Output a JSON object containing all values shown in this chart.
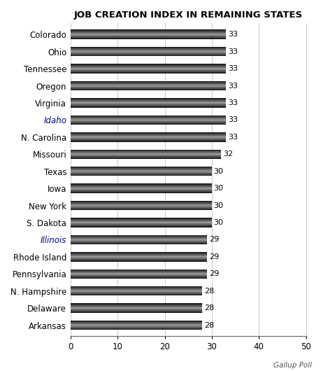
{
  "title": "JOB CREATION INDEX IN REMAINING STATES",
  "categories": [
    "Colorado",
    "Ohio",
    "Tennessee",
    "Oregon",
    "Virginia",
    "Idaho",
    "N. Carolina",
    "Missouri",
    "Texas",
    "Iowa",
    "New York",
    "S. Dakota",
    "Illinois",
    "Rhode Island",
    "Pennsylvania",
    "N. Hampshire",
    "Delaware",
    "Arkansas"
  ],
  "values": [
    33,
    33,
    33,
    33,
    33,
    33,
    33,
    32,
    30,
    30,
    30,
    30,
    29,
    29,
    29,
    28,
    28,
    28
  ],
  "xlim": [
    0,
    50
  ],
  "xticks": [
    0,
    10,
    20,
    30,
    40,
    50
  ],
  "background_color": "#ffffff",
  "title_fontsize": 9.5,
  "label_fontsize": 8.5,
  "value_fontsize": 8.0,
  "watermark": "Gallup Poll",
  "bar_height": 0.55,
  "italic_states": [
    "Idaho",
    "Illinois"
  ],
  "grid_color": "#cccccc",
  "spine_color": "#aaaaaa"
}
